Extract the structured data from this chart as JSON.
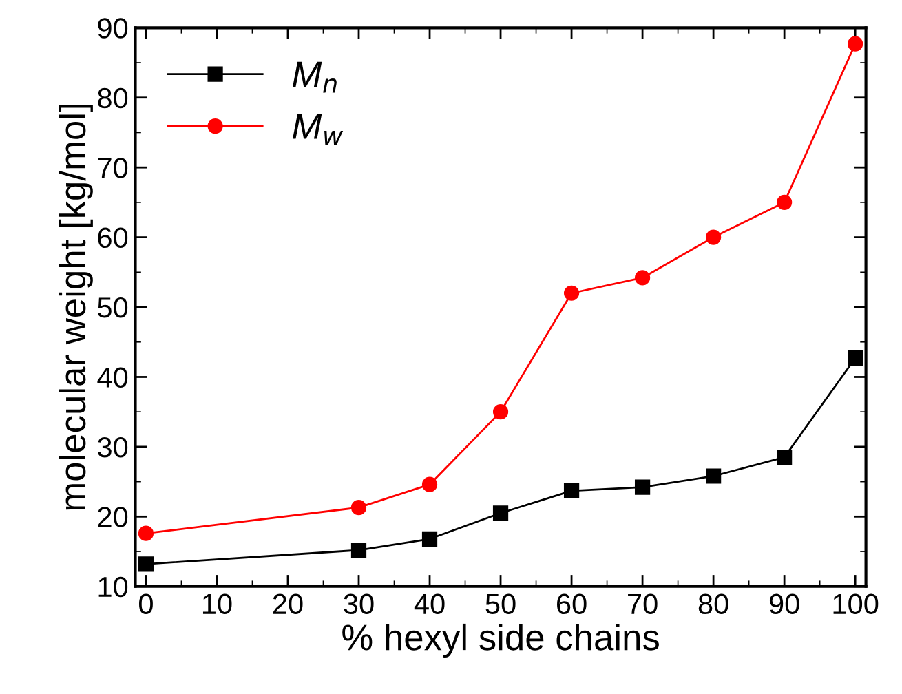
{
  "chart_data": {
    "type": "line",
    "xlabel": "% hexyl side chains",
    "ylabel": "molecular weight [kg/mol]",
    "x": [
      0,
      30,
      40,
      50,
      60,
      70,
      80,
      90,
      100
    ],
    "series": [
      {
        "name": "M$_{n}$",
        "color": "#000000",
        "marker": "square",
        "values": [
          13.2,
          15.2,
          16.8,
          20.5,
          23.7,
          24.2,
          25.8,
          28.5,
          42.7
        ]
      },
      {
        "name": "M$_{w}$",
        "color": "#ff0000",
        "marker": "circle",
        "values": [
          17.6,
          21.3,
          24.6,
          35.0,
          52.0,
          54.2,
          60.0,
          65.0,
          87.7
        ]
      }
    ],
    "xlim": [
      -1.5,
      101.5
    ],
    "ylim": [
      10,
      90
    ],
    "xticks": [
      0,
      10,
      20,
      30,
      40,
      50,
      60,
      70,
      80,
      90,
      100
    ],
    "yticks": [
      10,
      20,
      30,
      40,
      50,
      60,
      70,
      80,
      90
    ],
    "grid": false,
    "legend": "top left",
    "line_style": "solid"
  }
}
